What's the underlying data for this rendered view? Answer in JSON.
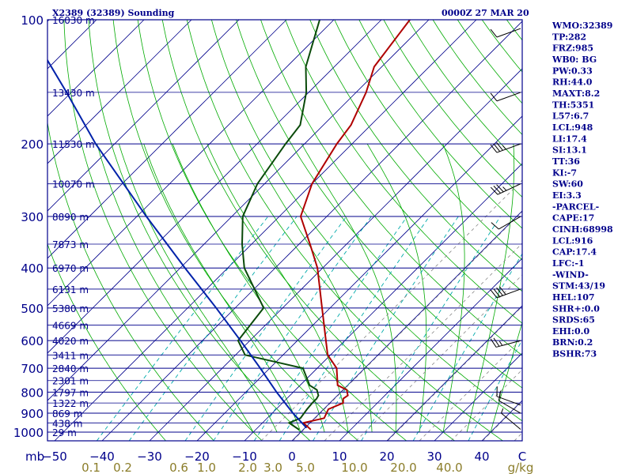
{
  "header": {
    "station": "X2389 (32389) Sounding",
    "time": "0000Z 27 MAR 20"
  },
  "chart_data": {
    "type": "line",
    "diagram": "skew-t log-p",
    "x_unit": "C",
    "y_unit": "hPa",
    "pressure_levels": [
      100,
      200,
      300,
      400,
      500,
      600,
      700,
      800,
      900,
      1000
    ],
    "temperature_ticks": [
      -50,
      -40,
      -30,
      -20,
      -10,
      0,
      10,
      20,
      30,
      40
    ],
    "temperature_tick_labels": [
      "−50",
      "−40",
      "−30",
      "−20",
      "−10",
      "0",
      "10",
      "20",
      "30",
      "40"
    ],
    "temperature_unit_label": "C",
    "mixing_ratio_ticks": [
      0.1,
      0.2,
      0.6,
      1.0,
      2.0,
      3.0,
      5.0,
      10.0,
      20.0,
      40.0
    ],
    "mixing_ratio_tick_labels": [
      "0.1",
      "0.2",
      "0.6",
      "1.0",
      "2.0",
      "3.0",
      "5.0",
      "10.0",
      "20.0",
      "40.0"
    ],
    "mixing_ratio_unit": "g/kg",
    "height_labels": [
      {
        "p": 100,
        "label": "16030 m"
      },
      {
        "p": 150,
        "label": "13430 m"
      },
      {
        "p": 200,
        "label": "11530 m"
      },
      {
        "p": 250,
        "label": "10070 m"
      },
      {
        "p": 300,
        "label": "8890 m"
      },
      {
        "p": 350,
        "label": "7873 m"
      },
      {
        "p": 400,
        "label": "6970 m"
      },
      {
        "p": 450,
        "label": "6131 m"
      },
      {
        "p": 500,
        "label": "5380 m"
      },
      {
        "p": 550,
        "label": "4669 m"
      },
      {
        "p": 600,
        "label": "4020 m"
      },
      {
        "p": 650,
        "label": "3411 m"
      },
      {
        "p": 700,
        "label": "2840 m"
      },
      {
        "p": 750,
        "label": "2301 m"
      },
      {
        "p": 800,
        "label": "1797 m"
      },
      {
        "p": 850,
        "label": "1322 m"
      },
      {
        "p": 900,
        "label": "869 m"
      },
      {
        "p": 950,
        "label": "438 m"
      },
      {
        "p": 1000,
        "label": "29 m"
      }
    ],
    "series": [
      {
        "color": "#b00000",
        "points": [
          {
            "p": 985,
            "t": 1.5
          },
          {
            "p": 950,
            "t": -1.4
          },
          {
            "p": 925,
            "t": 2.0
          },
          {
            "p": 880,
            "t": 1.0
          },
          {
            "p": 850,
            "t": 2.8
          },
          {
            "p": 830,
            "t": 1.9
          },
          {
            "p": 815,
            "t": 2.2
          },
          {
            "p": 790,
            "t": 0.8
          },
          {
            "p": 770,
            "t": -2.1
          },
          {
            "p": 700,
            "t": -5.9
          },
          {
            "p": 650,
            "t": -10.6
          },
          {
            "p": 600,
            "t": -14.0
          },
          {
            "p": 500,
            "t": -21.7
          },
          {
            "p": 400,
            "t": -31.1
          },
          {
            "p": 350,
            "t": -37.7
          },
          {
            "p": 300,
            "t": -45.5
          },
          {
            "p": 250,
            "t": -50.0
          },
          {
            "p": 200,
            "t": -53.2
          },
          {
            "p": 180,
            "t": -54.2
          },
          {
            "p": 150,
            "t": -57.9
          },
          {
            "p": 130,
            "t": -61.6
          },
          {
            "p": 100,
            "t": -64.0
          }
        ]
      },
      {
        "color": "#0a4a0a",
        "points": [
          {
            "p": 985,
            "t": -1.0
          },
          {
            "p": 950,
            "t": -4.4
          },
          {
            "p": 925,
            "t": -3.0
          },
          {
            "p": 880,
            "t": -3.5
          },
          {
            "p": 850,
            "t": -3.7
          },
          {
            "p": 830,
            "t": -3.7
          },
          {
            "p": 815,
            "t": -4.0
          },
          {
            "p": 790,
            "t": -5.5
          },
          {
            "p": 770,
            "t": -8.0
          },
          {
            "p": 700,
            "t": -13.0
          },
          {
            "p": 650,
            "t": -28.0
          },
          {
            "p": 600,
            "t": -32.5
          },
          {
            "p": 500,
            "t": -34.0
          },
          {
            "p": 400,
            "t": -46.5
          },
          {
            "p": 350,
            "t": -52.0
          },
          {
            "p": 300,
            "t": -57.7
          },
          {
            "p": 250,
            "t": -61.5
          },
          {
            "p": 200,
            "t": -64.0
          },
          {
            "p": 180,
            "t": -64.9
          },
          {
            "p": 150,
            "t": -70.5
          },
          {
            "p": 130,
            "t": -76.0
          },
          {
            "p": 100,
            "t": -83.0
          }
        ]
      },
      {
        "color": "#0022aa",
        "points": [
          {
            "p": 975,
            "t": 0.2
          },
          {
            "p": 900,
            "t": -5.6
          },
          {
            "p": 800,
            "t": -13.5
          },
          {
            "p": 700,
            "t": -22.0
          },
          {
            "p": 600,
            "t": -32.0
          },
          {
            "p": 500,
            "t": -44.0
          },
          {
            "p": 400,
            "t": -59.0
          },
          {
            "p": 300,
            "t": -78.0
          },
          {
            "p": 200,
            "t": -104.0
          },
          {
            "p": 150,
            "t": -121.0
          },
          {
            "p": 115,
            "t": -137.0
          }
        ]
      }
    ],
    "wind_barbs": [
      {
        "p": 105,
        "dir": 250,
        "kt": 10
      },
      {
        "p": 150,
        "dir": 250,
        "kt": 10
      },
      {
        "p": 200,
        "dir": 250,
        "kt": 35
      },
      {
        "p": 250,
        "dir": 245,
        "kt": 35
      },
      {
        "p": 300,
        "dir": 240,
        "kt": 10
      },
      {
        "p": 450,
        "dir": 250,
        "kt": 40
      },
      {
        "p": 600,
        "dir": 255,
        "kt": 25
      },
      {
        "p": 860,
        "dir": 290,
        "kt": 15
      },
      {
        "p": 900,
        "dir": 300,
        "kt": 10
      },
      {
        "p": 985,
        "dir": 310,
        "kt": 5
      }
    ]
  },
  "indices": [
    "WMO:32389",
    "TP:282",
    "FRZ:985",
    "WB0: BG",
    "PW:0.33",
    "RH:44.0",
    "MAXT:8.2",
    "TH:5351",
    "L57:6.7",
    "LCL:948",
    "LI:17.4",
    "SI:13.1",
    "TT:36",
    "KI:-7",
    "SW:60",
    "EI:3.3",
    "-PARCEL-",
    "CAPE:17",
    "CINH:68998",
    "LCL:916",
    "CAP:17.4",
    "LFC:-1",
    "-WIND-",
    "STM:43/19",
    "HEL:107",
    "SHR+:0.0",
    "SRDS:65",
    "EHI:0.0",
    "BRN:0.2",
    "BSHR:73"
  ],
  "corner_label": "mb",
  "colors": {
    "axis": "#00008b",
    "dry_adiabat": "#00aa00",
    "moist_adiabat": "#00aa00",
    "mixing_ratio": "#00aaaa",
    "isotherm": "#00008b",
    "mixing_label": "#8b7d2a"
  }
}
